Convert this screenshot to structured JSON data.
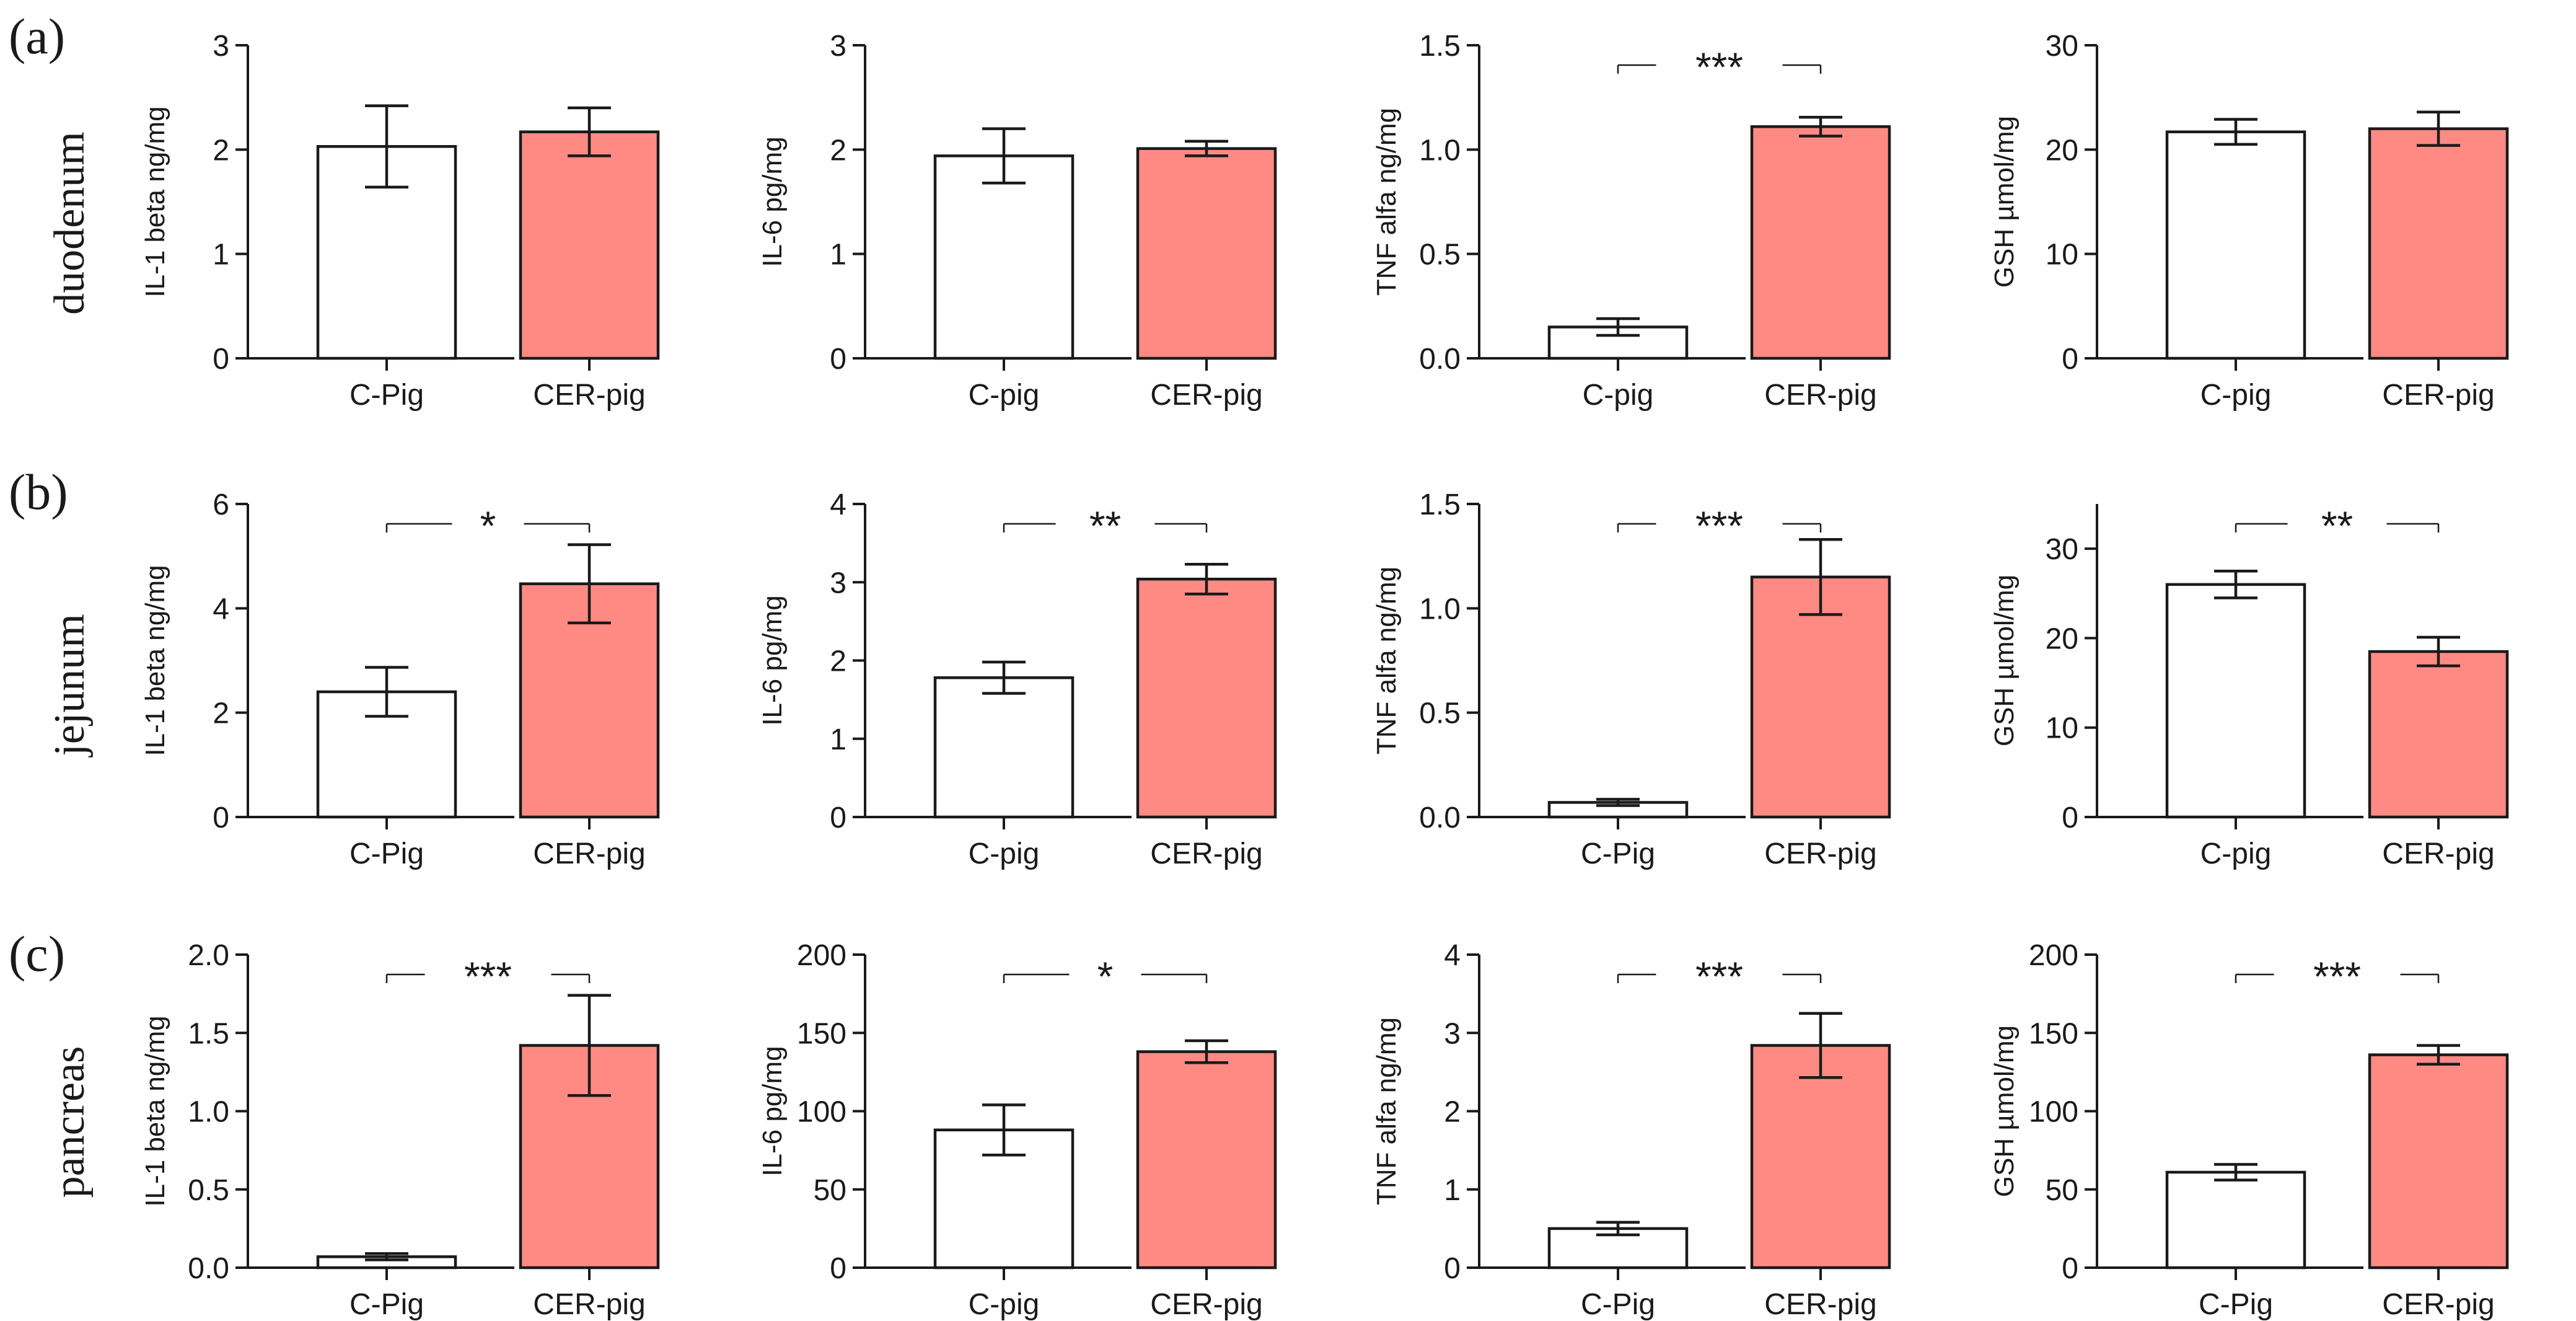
{
  "colors": {
    "control": "#ffffff",
    "treated": "#ff8a84",
    "ink": "#1a1a1a"
  },
  "rows": [
    {
      "label": "(a)",
      "tissue": "duodenum"
    },
    {
      "label": "(b)",
      "tissue": "jejunum"
    },
    {
      "label": "(c)",
      "tissue": "pancreas"
    }
  ],
  "chart_data": [
    {
      "type": "bar",
      "row": 0,
      "col": 0,
      "ylabel": "IL-1 beta ng/mg",
      "ylim": [
        0,
        3
      ],
      "ticks": [
        0,
        1,
        2,
        3
      ],
      "tick_labels": [
        "0",
        "1",
        "2",
        "3"
      ],
      "categories": [
        "C-Pig",
        "CER-pig"
      ],
      "values": [
        2.03,
        2.17
      ],
      "errors": [
        0.39,
        0.23
      ],
      "significance": ""
    },
    {
      "type": "bar",
      "row": 0,
      "col": 1,
      "ylabel": "IL-6 pg/mg",
      "ylim": [
        0,
        3
      ],
      "ticks": [
        0,
        1,
        2,
        3
      ],
      "tick_labels": [
        "0",
        "1",
        "2",
        "3"
      ],
      "categories": [
        "C-pig",
        "CER-pig"
      ],
      "values": [
        1.94,
        2.01
      ],
      "errors": [
        0.26,
        0.07
      ],
      "significance": ""
    },
    {
      "type": "bar",
      "row": 0,
      "col": 2,
      "ylabel": "TNF alfa ng/mg",
      "ylim": [
        0,
        1.5
      ],
      "ticks": [
        0,
        0.5,
        1.0,
        1.5
      ],
      "tick_labels": [
        "0.0",
        "0.5",
        "1.0",
        "1.5"
      ],
      "categories": [
        "C-pig",
        "CER-pig"
      ],
      "values": [
        0.15,
        1.11
      ],
      "errors": [
        0.04,
        0.045
      ],
      "significance": "***"
    },
    {
      "type": "bar",
      "row": 0,
      "col": 3,
      "ylabel": "GSH µmol/mg",
      "ylim": [
        0,
        30
      ],
      "ticks": [
        0,
        10,
        20,
        30
      ],
      "tick_labels": [
        "0",
        "10",
        "20",
        "30"
      ],
      "categories": [
        "C-pig",
        "CER-pig"
      ],
      "values": [
        21.7,
        22.0
      ],
      "errors": [
        1.2,
        1.6
      ],
      "significance": ""
    },
    {
      "type": "bar",
      "row": 1,
      "col": 0,
      "ylabel": "IL-1 beta ng/mg",
      "ylim": [
        0,
        6
      ],
      "ticks": [
        0,
        2,
        4,
        6
      ],
      "tick_labels": [
        "0",
        "2",
        "4",
        "6"
      ],
      "categories": [
        "C-Pig",
        "CER-pig"
      ],
      "values": [
        2.4,
        4.47
      ],
      "errors": [
        0.47,
        0.75
      ],
      "significance": "*"
    },
    {
      "type": "bar",
      "row": 1,
      "col": 1,
      "ylabel": "IL-6 pg/mg",
      "ylim": [
        0,
        4
      ],
      "ticks": [
        0,
        1,
        2,
        3,
        4
      ],
      "tick_labels": [
        "0",
        "1",
        "2",
        "3",
        "4"
      ],
      "categories": [
        "C-pig",
        "CER-pig"
      ],
      "values": [
        1.78,
        3.04
      ],
      "errors": [
        0.2,
        0.19
      ],
      "significance": "**"
    },
    {
      "type": "bar",
      "row": 1,
      "col": 2,
      "ylabel": "TNF alfa ng/mg",
      "ylim": [
        0,
        1.5
      ],
      "ticks": [
        0,
        0.5,
        1.0,
        1.5
      ],
      "tick_labels": [
        "0.0",
        "0.5",
        "1.0",
        "1.5"
      ],
      "categories": [
        "C-Pig",
        "CER-pig"
      ],
      "values": [
        0.07,
        1.15
      ],
      "errors": [
        0.015,
        0.18
      ],
      "significance": "***"
    },
    {
      "type": "bar",
      "row": 1,
      "col": 3,
      "ylabel": "GSH µmol/mg",
      "ylim": [
        0,
        35
      ],
      "ticks": [
        0,
        10,
        20,
        30
      ],
      "tick_labels": [
        "0",
        "10",
        "20",
        "30"
      ],
      "categories": [
        "C-pig",
        "CER-pig"
      ],
      "values": [
        26.0,
        18.5
      ],
      "errors": [
        1.5,
        1.6
      ],
      "significance": "**"
    },
    {
      "type": "bar",
      "row": 2,
      "col": 0,
      "ylabel": "IL-1 beta ng/mg",
      "ylim": [
        0,
        2.0
      ],
      "ticks": [
        0,
        0.5,
        1.0,
        1.5,
        2.0
      ],
      "tick_labels": [
        "0.0",
        "0.5",
        "1.0",
        "1.5",
        "2.0"
      ],
      "categories": [
        "C-Pig",
        "CER-pig"
      ],
      "values": [
        0.07,
        1.42
      ],
      "errors": [
        0.02,
        0.32
      ],
      "significance": "***"
    },
    {
      "type": "bar",
      "row": 2,
      "col": 1,
      "ylabel": "IL-6 pg/mg",
      "ylim": [
        0,
        200
      ],
      "ticks": [
        0,
        50,
        100,
        150,
        200
      ],
      "tick_labels": [
        "0",
        "50",
        "100",
        "150",
        "200"
      ],
      "categories": [
        "C-pig",
        "CER-pig"
      ],
      "values": [
        88,
        138
      ],
      "errors": [
        16,
        7
      ],
      "significance": "*"
    },
    {
      "type": "bar",
      "row": 2,
      "col": 2,
      "ylabel": "TNF alfa ng/mg",
      "ylim": [
        0,
        4
      ],
      "ticks": [
        0,
        1,
        2,
        3,
        4
      ],
      "tick_labels": [
        "0",
        "1",
        "2",
        "3",
        "4"
      ],
      "categories": [
        "C-Pig",
        "CER-pig"
      ],
      "values": [
        0.5,
        2.84
      ],
      "errors": [
        0.08,
        0.41
      ],
      "significance": "***"
    },
    {
      "type": "bar",
      "row": 2,
      "col": 3,
      "ylabel": "GSH µmol/mg",
      "ylim": [
        0,
        200
      ],
      "ticks": [
        0,
        50,
        100,
        150,
        200
      ],
      "tick_labels": [
        "0",
        "50",
        "100",
        "150",
        "200"
      ],
      "categories": [
        "C-Pig",
        "CER-pig"
      ],
      "values": [
        61,
        136
      ],
      "errors": [
        5,
        6
      ],
      "significance": "***"
    }
  ]
}
